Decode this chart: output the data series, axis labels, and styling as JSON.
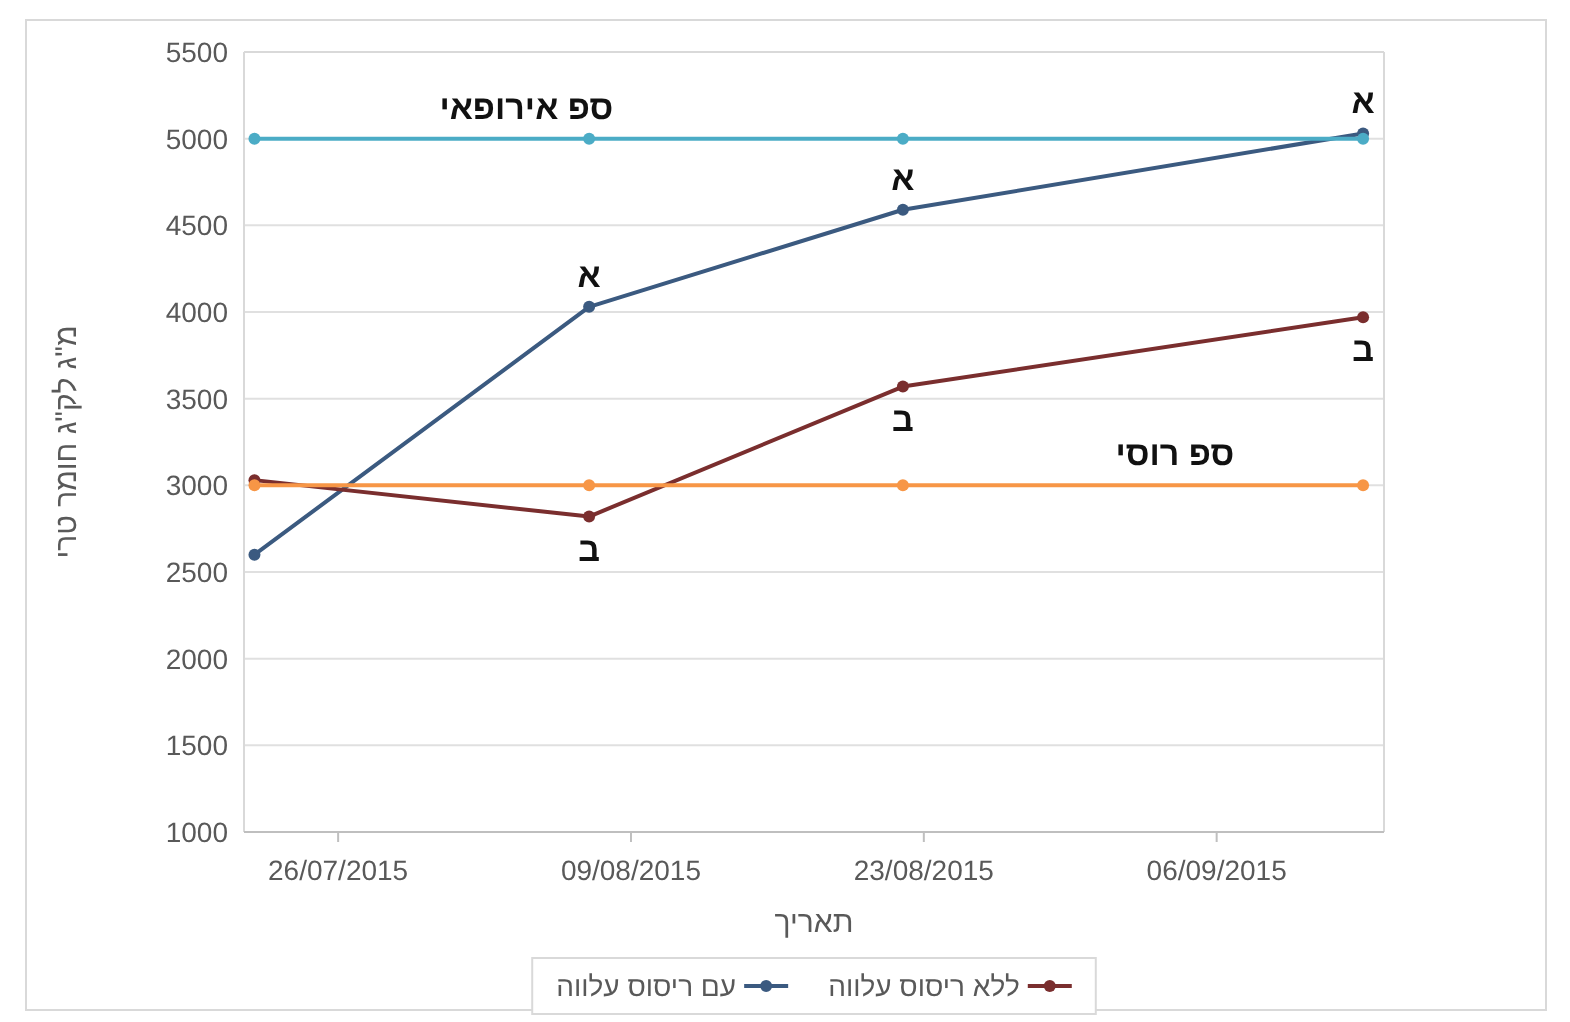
{
  "chart_data": {
    "type": "line",
    "xlabel": "תאריך",
    "ylabel": "מ\"ג לק\"ג חומר טרי",
    "x": [
      "2015-07-22",
      "2015-08-07",
      "2015-08-22",
      "2015-09-13"
    ],
    "series": [
      {
        "name": "עם ריסוס עלווה",
        "color": "#3b5a80",
        "values": [
          2600,
          4030,
          4590,
          5030
        ]
      },
      {
        "name": "ללא ריסוס עלווה",
        "color": "#7a2e2e",
        "values": [
          3030,
          2820,
          3570,
          3970
        ]
      },
      {
        "color": "#4bacc6",
        "values": [
          5000,
          5000,
          5000,
          5000
        ]
      },
      {
        "color": "#f79646",
        "values": [
          3000,
          3000,
          3000,
          3000
        ]
      }
    ],
    "annotations": [
      {
        "text": "ספ אירופאי",
        "x": "2015-08-04",
        "y": 5000
      },
      {
        "text": "ספ רוסי",
        "x": "2015-09-04",
        "y": 3000
      },
      {
        "text": "א",
        "x": "2015-08-07",
        "y": 4030
      },
      {
        "text": "א",
        "x": "2015-08-22",
        "y": 4590
      },
      {
        "text": "א",
        "x": "2015-09-13",
        "y": 5030
      },
      {
        "text": "ב",
        "x": "2015-08-07",
        "y": 2820
      },
      {
        "text": "ב",
        "x": "2015-08-22",
        "y": 3570
      },
      {
        "text": "ב",
        "x": "2015-09-13",
        "y": 3970
      }
    ],
    "xlim": [
      "2015-07-21T12:00",
      "2015-09-14"
    ],
    "xticks": [
      {
        "value": "2015-07-26",
        "label": "26/07/2015"
      },
      {
        "value": "2015-08-09",
        "label": "09/08/2015"
      },
      {
        "value": "2015-08-23",
        "label": "23/08/2015"
      },
      {
        "value": "2015-09-06",
        "label": "06/09/2015"
      }
    ],
    "ylim": [
      1000,
      5500
    ],
    "yticks": [
      1000,
      1500,
      2000,
      2500,
      3000,
      3500,
      4000,
      4500,
      5000,
      5500
    ],
    "grid": "y",
    "legend": "bottom",
    "marker": "circle",
    "line_style": "solid"
  }
}
